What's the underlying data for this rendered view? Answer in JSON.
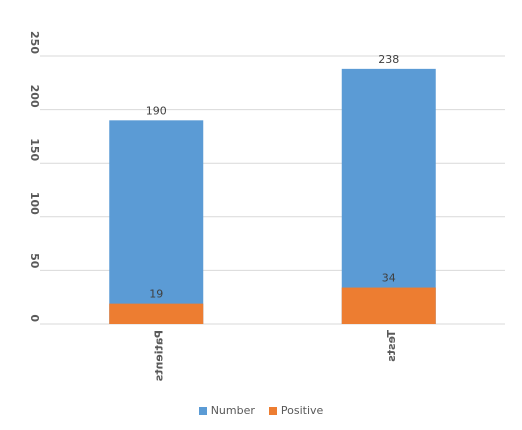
{
  "chart_data": {
    "type": "bar",
    "stacked": false,
    "overlap": true,
    "categories": [
      "Patients",
      "Tests"
    ],
    "series": [
      {
        "name": "Number",
        "values": [
          190,
          238
        ],
        "color": "#5b9bd5"
      },
      {
        "name": "Positive",
        "values": [
          19,
          34
        ],
        "color": "#ed7d31"
      }
    ],
    "yticks": [
      0,
      50,
      100,
      150,
      200,
      250
    ],
    "ylim": [
      0,
      250
    ],
    "grid": true,
    "legend_position": "bottom",
    "data_labels": true,
    "tick_label_rotation": "vertical"
  }
}
